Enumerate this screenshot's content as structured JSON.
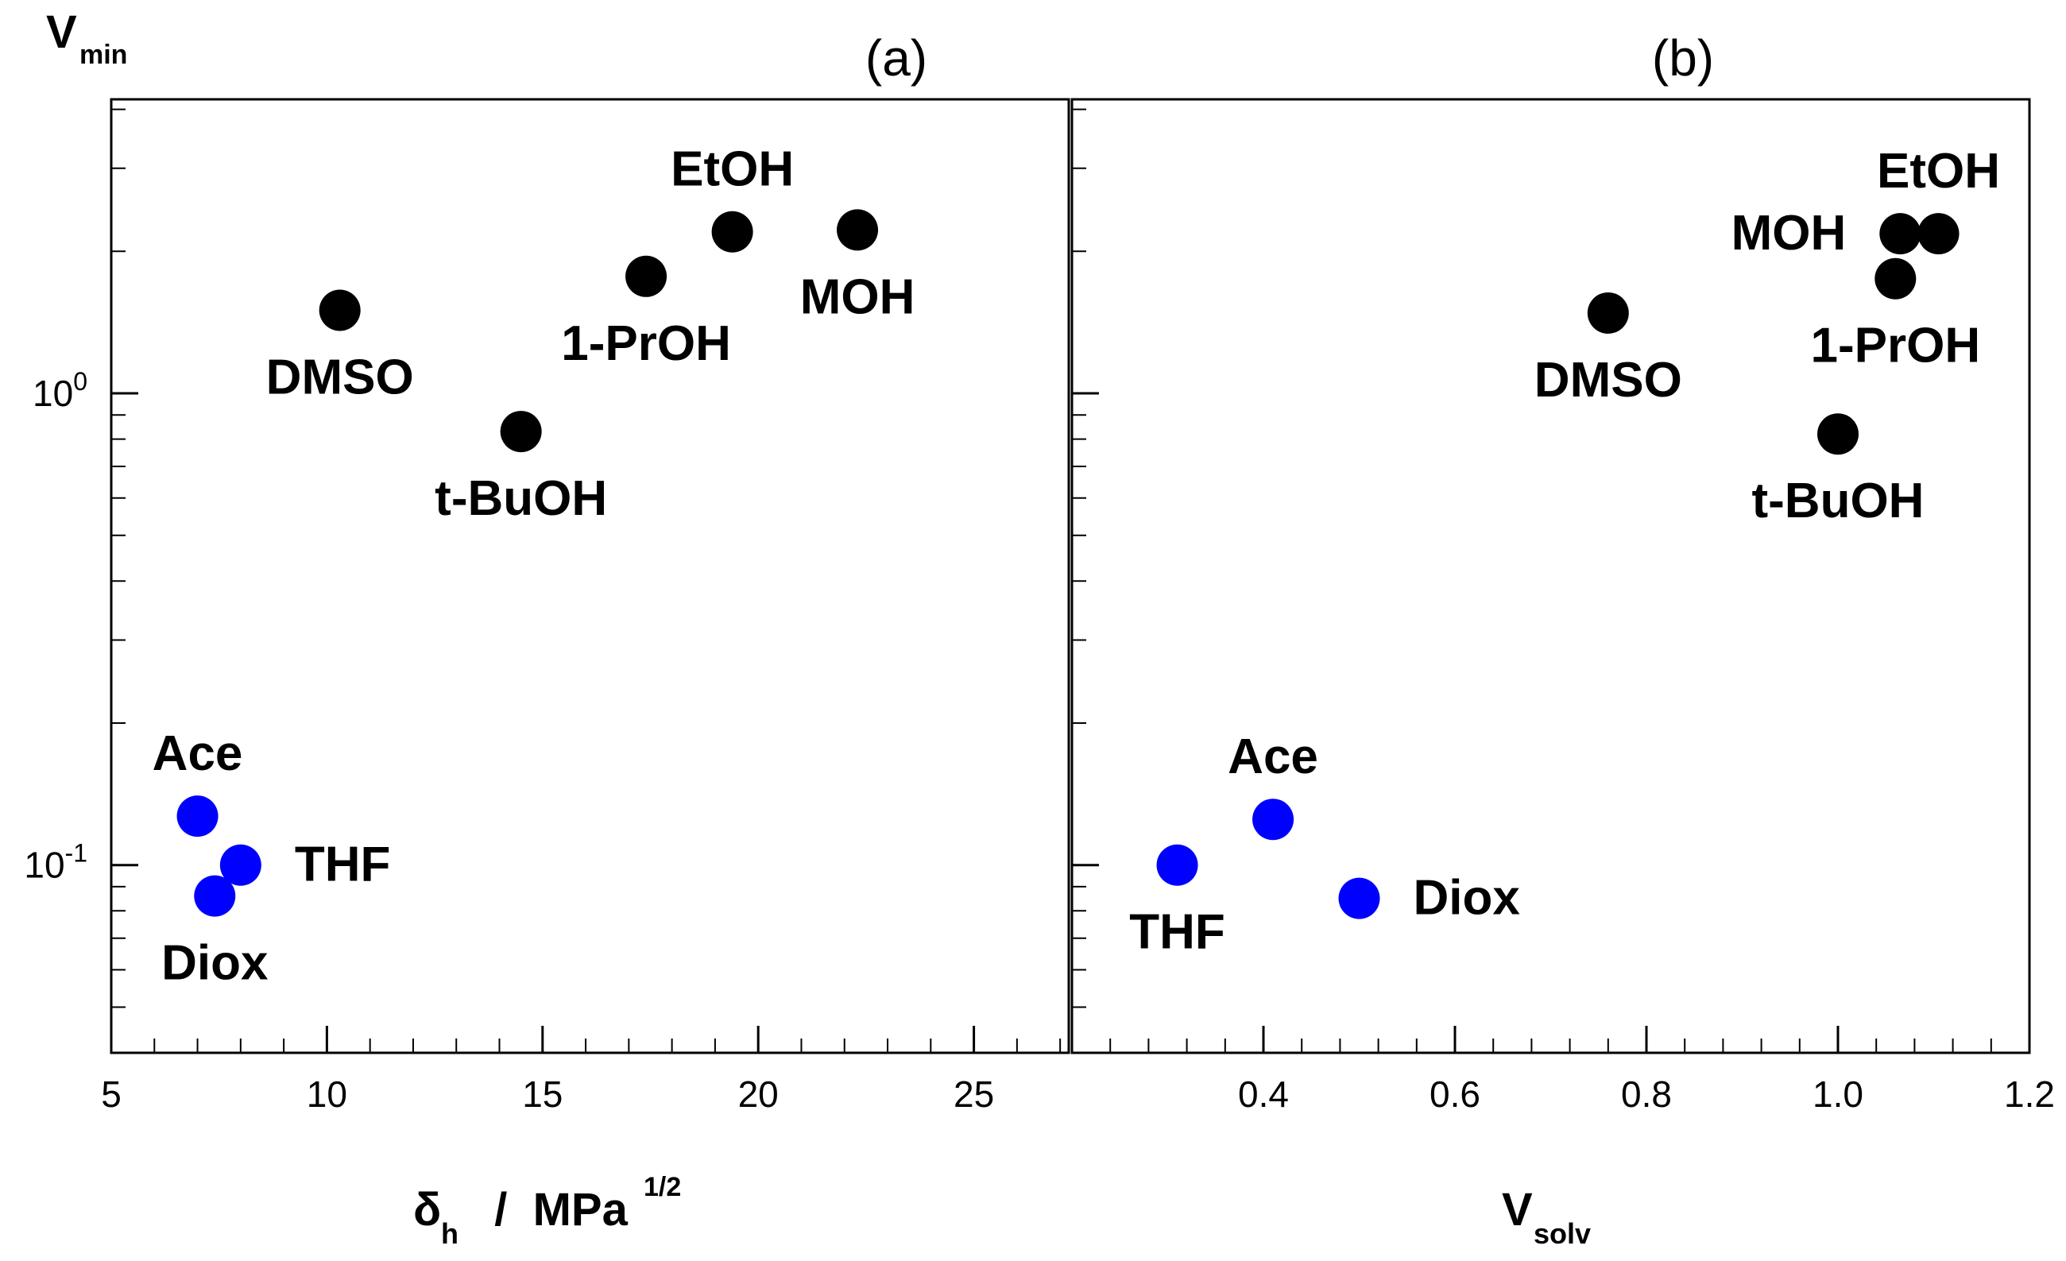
{
  "figure": {
    "y_label_main": "V",
    "y_label_sub": "min",
    "colors": {
      "polar": "#000000",
      "aprotic": "#0000ff",
      "axis": "#000000"
    }
  },
  "chart_data": [
    {
      "panel": "(a)",
      "type": "scatter",
      "xscale": "linear",
      "yscale": "log",
      "xlabel": {
        "main": "δ",
        "sub": "h",
        "mid": "  /  MPa",
        "sup": "1/2"
      },
      "ylabel": "Vmin",
      "xlim": [
        5,
        27.2
      ],
      "ylim": [
        0.04,
        4.2
      ],
      "xticks": [
        5,
        10,
        15,
        20,
        25
      ],
      "xtick_labels": [
        "5",
        "10",
        "15",
        "20",
        "25"
      ],
      "yticks": [
        {
          "value": 1,
          "base": "10",
          "exp": "0"
        },
        {
          "value": 0.1,
          "base": "10",
          "exp": "-1"
        }
      ],
      "points": [
        {
          "name": "DMSO",
          "x": 10.3,
          "y": 1.5,
          "color": "#000000",
          "label_pos": "below"
        },
        {
          "name": "t-BuOH",
          "x": 14.5,
          "y": 0.83,
          "color": "#000000",
          "label_pos": "below"
        },
        {
          "name": "1-PrOH",
          "x": 17.4,
          "y": 1.77,
          "color": "#000000",
          "label_pos": "below"
        },
        {
          "name": "EtOH",
          "x": 19.4,
          "y": 2.2,
          "color": "#000000",
          "label_pos": "above"
        },
        {
          "name": "MOH",
          "x": 22.3,
          "y": 2.22,
          "color": "#000000",
          "label_pos": "below"
        },
        {
          "name": "Ace",
          "x": 7.0,
          "y": 0.127,
          "color": "#0000ff",
          "label_pos": "above"
        },
        {
          "name": "THF",
          "x": 8.0,
          "y": 0.1,
          "color": "#0000ff",
          "label_pos": "right"
        },
        {
          "name": "Diox",
          "x": 7.4,
          "y": 0.086,
          "color": "#0000ff",
          "label_pos": "below"
        }
      ]
    },
    {
      "panel": "(b)",
      "type": "scatter",
      "xscale": "linear",
      "yscale": "log",
      "xlabel": {
        "main": "V",
        "sub": "solv",
        "mid": "",
        "sup": ""
      },
      "ylabel": "Vmin",
      "xlim": [
        0.2,
        1.2
      ],
      "ylim": [
        0.04,
        4.2
      ],
      "xticks": [
        0.4,
        0.6,
        0.8,
        1.0,
        1.2
      ],
      "xtick_labels": [
        "0.4",
        "0.6",
        "0.8",
        "1.0",
        "1.2"
      ],
      "yticks": [],
      "points": [
        {
          "name": "DMSO",
          "x": 0.76,
          "y": 1.48,
          "color": "#000000",
          "label_pos": "below"
        },
        {
          "name": "t-BuOH",
          "x": 1.0,
          "y": 0.82,
          "color": "#000000",
          "label_pos": "below"
        },
        {
          "name": "1-PrOH",
          "x": 1.06,
          "y": 1.75,
          "color": "#000000",
          "label_pos": "below"
        },
        {
          "name": "MOH",
          "x": 1.065,
          "y": 2.18,
          "color": "#000000",
          "label_pos": "left"
        },
        {
          "name": "EtOH",
          "x": 1.105,
          "y": 2.18,
          "color": "#000000",
          "label_pos": "above"
        },
        {
          "name": "Ace",
          "x": 0.41,
          "y": 0.125,
          "color": "#0000ff",
          "label_pos": "above"
        },
        {
          "name": "THF",
          "x": 0.31,
          "y": 0.1,
          "color": "#0000ff",
          "label_pos": "below"
        },
        {
          "name": "Diox",
          "x": 0.5,
          "y": 0.085,
          "color": "#0000ff",
          "label_pos": "right"
        }
      ]
    }
  ]
}
